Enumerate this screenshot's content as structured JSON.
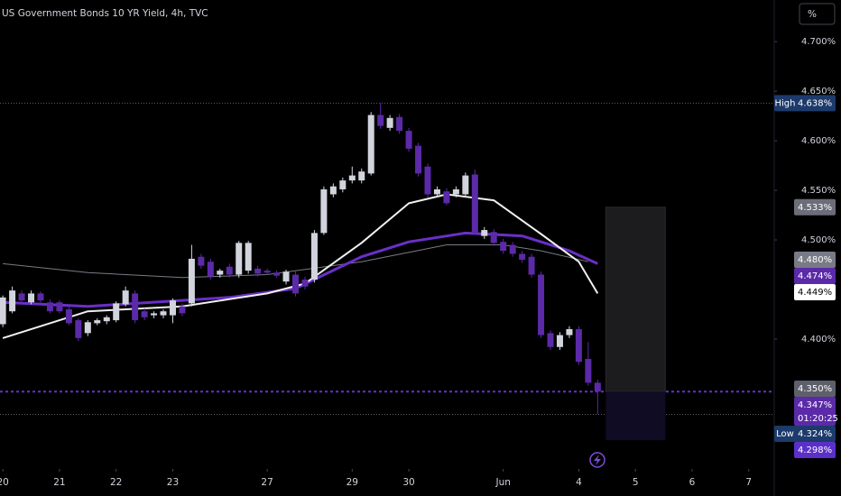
{
  "chart_data": {
    "type": "candlestick",
    "title": "US Government Bonds 10 YR Yield, 4h, TVC",
    "unit_button": "%",
    "x": [
      0,
      1,
      2,
      3,
      4,
      5,
      6,
      7,
      8,
      9,
      10,
      11,
      12,
      13,
      14,
      15,
      16,
      17,
      18,
      19,
      20,
      21,
      22,
      23,
      24,
      25,
      26,
      27,
      28,
      29,
      30,
      31,
      32,
      33,
      34,
      35,
      36,
      37,
      38,
      39,
      40,
      41,
      42,
      43,
      44,
      45,
      46,
      47,
      48,
      49,
      50,
      51,
      52,
      53,
      54,
      55,
      56,
      57,
      58,
      59,
      60,
      61,
      62,
      63
    ],
    "ohlc": [
      [
        4.415,
        4.444,
        4.412,
        4.442
      ],
      [
        4.428,
        4.453,
        4.426,
        4.449
      ],
      [
        4.446,
        4.449,
        4.436,
        4.439
      ],
      [
        4.437,
        4.449,
        4.435,
        4.446
      ],
      [
        4.446,
        4.448,
        4.437,
        4.439
      ],
      [
        4.437,
        4.44,
        4.426,
        4.428
      ],
      [
        4.437,
        4.439,
        4.426,
        4.428
      ],
      [
        4.43,
        4.433,
        4.414,
        4.416
      ],
      [
        4.419,
        4.421,
        4.398,
        4.401
      ],
      [
        4.406,
        4.419,
        4.403,
        4.417
      ],
      [
        4.416,
        4.421,
        4.414,
        4.419
      ],
      [
        4.418,
        4.424,
        4.415,
        4.422
      ],
      [
        4.419,
        4.438,
        4.417,
        4.436
      ],
      [
        4.435,
        4.453,
        4.433,
        4.449
      ],
      [
        4.446,
        4.449,
        4.416,
        4.419
      ],
      [
        4.428,
        4.431,
        4.419,
        4.422
      ],
      [
        4.424,
        4.428,
        4.421,
        4.426
      ],
      [
        4.424,
        4.43,
        4.421,
        4.428
      ],
      [
        4.424,
        4.441,
        4.416,
        4.439
      ],
      [
        4.433,
        4.436,
        4.423,
        4.426
      ],
      [
        4.436,
        4.495,
        4.433,
        4.481
      ],
      [
        4.483,
        4.486,
        4.471,
        4.474
      ],
      [
        4.478,
        4.481,
        4.46,
        4.463
      ],
      [
        4.465,
        4.471,
        4.462,
        4.469
      ],
      [
        4.473,
        4.476,
        4.462,
        4.465
      ],
      [
        4.465,
        4.499,
        4.462,
        4.497
      ],
      [
        4.469,
        4.499,
        4.466,
        4.497
      ],
      [
        4.471,
        4.474,
        4.463,
        4.466
      ],
      [
        4.469,
        4.471,
        4.465,
        4.467
      ],
      [
        4.467,
        4.469,
        4.462,
        4.464
      ],
      [
        4.458,
        4.47,
        4.455,
        4.468
      ],
      [
        4.465,
        4.468,
        4.443,
        4.446
      ],
      [
        4.46,
        4.463,
        4.45,
        4.453
      ],
      [
        4.46,
        4.51,
        4.457,
        4.507
      ],
      [
        4.507,
        4.554,
        4.505,
        4.551
      ],
      [
        4.546,
        4.557,
        4.543,
        4.554
      ],
      [
        4.551,
        4.563,
        4.548,
        4.56
      ],
      [
        4.56,
        4.574,
        4.557,
        4.565
      ],
      [
        4.56,
        4.572,
        4.557,
        4.569
      ],
      [
        4.567,
        4.629,
        4.565,
        4.626
      ],
      [
        4.626,
        4.638,
        4.612,
        4.615
      ],
      [
        4.613,
        4.626,
        4.61,
        4.623
      ],
      [
        4.624,
        4.627,
        4.607,
        4.61
      ],
      [
        4.61,
        4.613,
        4.589,
        4.592
      ],
      [
        4.595,
        4.598,
        4.564,
        4.567
      ],
      [
        4.574,
        4.577,
        4.543,
        4.546
      ],
      [
        4.546,
        4.554,
        4.543,
        4.551
      ],
      [
        4.549,
        4.552,
        4.535,
        4.537
      ],
      [
        4.546,
        4.554,
        4.543,
        4.551
      ],
      [
        4.546,
        4.568,
        4.543,
        4.565
      ],
      [
        4.566,
        4.571,
        4.505,
        4.507
      ],
      [
        4.504,
        4.513,
        4.501,
        4.51
      ],
      [
        4.508,
        4.511,
        4.494,
        4.497
      ],
      [
        4.498,
        4.501,
        4.486,
        4.489
      ],
      [
        4.495,
        4.498,
        4.483,
        4.486
      ],
      [
        4.486,
        4.489,
        4.477,
        4.48
      ],
      [
        4.483,
        4.486,
        4.462,
        4.465
      ],
      [
        4.465,
        4.468,
        4.401,
        4.404
      ],
      [
        4.406,
        4.409,
        4.389,
        4.392
      ],
      [
        4.392,
        4.407,
        4.389,
        4.404
      ],
      [
        4.404,
        4.413,
        4.401,
        4.41
      ],
      [
        4.41,
        4.413,
        4.374,
        4.377
      ],
      [
        4.38,
        4.397,
        4.353,
        4.356
      ],
      [
        4.356,
        4.359,
        4.324,
        4.347
      ]
    ],
    "up_color": "#d1d4dc",
    "down_color": "#5b2aa8",
    "xlim": [
      -0.3,
      81.7
    ],
    "xticks": [
      {
        "value": 0,
        "label": "20"
      },
      {
        "value": 6,
        "label": "21"
      },
      {
        "value": 12,
        "label": "22"
      },
      {
        "value": 18,
        "label": "23"
      },
      {
        "value": 28,
        "label": "27"
      },
      {
        "value": 37,
        "label": "29"
      },
      {
        "value": 43,
        "label": "30"
      },
      {
        "value": 53,
        "label": "Jun"
      },
      {
        "value": 61,
        "label": "4"
      },
      {
        "value": 67,
        "label": "5"
      },
      {
        "value": 73,
        "label": "6"
      },
      {
        "value": 79,
        "label": "7"
      }
    ],
    "ylim": [
      4.269,
      4.742
    ],
    "yticks": [
      {
        "value": 4.7,
        "label": "4.700%"
      },
      {
        "value": 4.65,
        "label": "4.650%"
      },
      {
        "value": 4.6,
        "label": "4.600%"
      },
      {
        "value": 4.55,
        "label": "4.550%"
      },
      {
        "value": 4.5,
        "label": "4.500%"
      },
      {
        "value": 4.4,
        "label": "4.400%"
      }
    ],
    "grid": false,
    "lines": [
      {
        "color": "#787b86",
        "width": 1,
        "x": [
          0,
          9,
          19,
          28,
          38,
          47,
          53,
          57,
          62
        ],
        "values": [
          4.476,
          4.467,
          4.462,
          4.465,
          4.478,
          4.495,
          4.495,
          4.489,
          4.478
        ]
      },
      {
        "color": "#6a2fc8",
        "width": 3,
        "x": [
          0,
          9,
          19,
          24,
          31,
          38,
          43,
          49,
          55,
          60,
          63
        ],
        "values": [
          4.437,
          4.433,
          4.439,
          4.442,
          4.451,
          4.483,
          4.498,
          4.507,
          4.504,
          4.489,
          4.476
        ]
      },
      {
        "color": "#f0f0f0",
        "width": 2,
        "x": [
          0,
          9,
          19,
          28,
          32,
          38,
          43,
          47,
          52,
          57,
          61,
          63
        ],
        "values": [
          4.401,
          4.428,
          4.433,
          4.446,
          4.456,
          4.497,
          4.537,
          4.546,
          4.54,
          4.506,
          4.478,
          4.446
        ]
      }
    ],
    "price_labels": [
      {
        "value": 4.638,
        "label": "4.638%",
        "tag": "High",
        "color": "#1c3a6b",
        "text_color": "#ffffff",
        "line": "#5d606b"
      },
      {
        "value": 4.533,
        "label": "4.533%",
        "color": "#6b6e78",
        "text_color": "#ffffff"
      },
      {
        "value": 4.48,
        "label": "4.480%",
        "color": "#787b86",
        "text_color": "#ffffff"
      },
      {
        "value": 4.474,
        "label": "4.474%",
        "color": "#5b2aa8",
        "text_color": "#ffffff"
      },
      {
        "value": 4.449,
        "label": "4.449%",
        "color": "#ffffff",
        "text_color": "#000000"
      },
      {
        "value": 4.35,
        "label": "4.350%",
        "color": "#5d606b",
        "text_color": "#ffffff"
      },
      {
        "value": 4.347,
        "label": "4.347%",
        "sub": "01:20:25",
        "color": "#5b2aa8",
        "text_color": "#ffffff",
        "line": "#6a2fc8"
      },
      {
        "value": 4.324,
        "label": "4.324%",
        "tag": "Low",
        "color": "#1c3a6b",
        "text_color": "#ffffff",
        "line": "#5d606b"
      },
      {
        "value": 4.298,
        "label": "4.298%",
        "color": "#5b2fc9",
        "text_color": "#ffffff"
      }
    ]
  }
}
